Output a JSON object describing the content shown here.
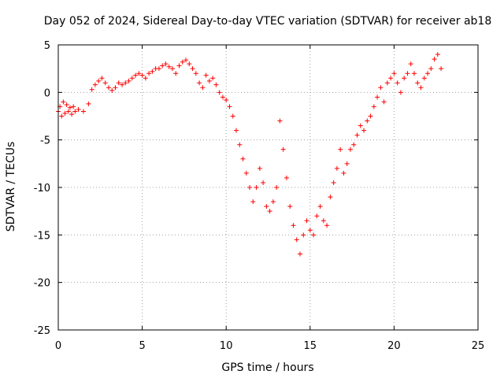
{
  "chart_data": {
    "type": "scatter",
    "title": "Day 052 of 2024, Sidereal Day-to-day VTEC variation (SDTVAR) for receiver ab18",
    "xlabel": "GPS time / hours",
    "ylabel": "SDTVAR / TECUs",
    "xlim": [
      0,
      25
    ],
    "ylim": [
      -25,
      5
    ],
    "xticks": [
      0,
      5,
      10,
      15,
      20,
      25
    ],
    "yticks": [
      -25,
      -20,
      -15,
      -10,
      -5,
      0,
      5
    ],
    "grid": true,
    "marker": "+",
    "color": "#ff0000",
    "series": [
      {
        "name": "SDTVAR",
        "points": [
          [
            0.0,
            -2.0
          ],
          [
            0.1,
            -1.5
          ],
          [
            0.2,
            -2.5
          ],
          [
            0.3,
            -1.0
          ],
          [
            0.4,
            -2.2
          ],
          [
            0.5,
            -1.3
          ],
          [
            0.6,
            -2.0
          ],
          [
            0.7,
            -1.6
          ],
          [
            0.8,
            -2.3
          ],
          [
            0.9,
            -1.5
          ],
          [
            1.0,
            -2.0
          ],
          [
            1.2,
            -1.8
          ],
          [
            1.5,
            -2.0
          ],
          [
            1.8,
            -1.2
          ],
          [
            2.0,
            0.3
          ],
          [
            2.2,
            0.8
          ],
          [
            2.4,
            1.2
          ],
          [
            2.6,
            1.5
          ],
          [
            2.8,
            1.0
          ],
          [
            3.0,
            0.5
          ],
          [
            3.2,
            0.2
          ],
          [
            3.4,
            0.5
          ],
          [
            3.6,
            1.0
          ],
          [
            3.8,
            0.8
          ],
          [
            4.0,
            1.0
          ],
          [
            4.2,
            1.2
          ],
          [
            4.4,
            1.5
          ],
          [
            4.6,
            1.8
          ],
          [
            4.8,
            2.0
          ],
          [
            5.0,
            1.8
          ],
          [
            5.2,
            1.5
          ],
          [
            5.4,
            2.0
          ],
          [
            5.6,
            2.2
          ],
          [
            5.8,
            2.5
          ],
          [
            6.0,
            2.5
          ],
          [
            6.2,
            2.8
          ],
          [
            6.4,
            3.0
          ],
          [
            6.6,
            2.7
          ],
          [
            6.8,
            2.5
          ],
          [
            7.0,
            2.0
          ],
          [
            7.2,
            2.8
          ],
          [
            7.4,
            3.2
          ],
          [
            7.6,
            3.4
          ],
          [
            7.8,
            3.0
          ],
          [
            8.0,
            2.5
          ],
          [
            8.2,
            2.0
          ],
          [
            8.4,
            1.0
          ],
          [
            8.6,
            0.5
          ],
          [
            8.8,
            1.8
          ],
          [
            9.0,
            1.2
          ],
          [
            9.2,
            1.5
          ],
          [
            9.4,
            0.8
          ],
          [
            9.6,
            0.0
          ],
          [
            9.8,
            -0.5
          ],
          [
            10.0,
            -0.8
          ],
          [
            10.2,
            -1.5
          ],
          [
            10.4,
            -2.5
          ],
          [
            10.6,
            -4.0
          ],
          [
            10.8,
            -5.5
          ],
          [
            11.0,
            -7.0
          ],
          [
            11.2,
            -8.5
          ],
          [
            11.4,
            -10.0
          ],
          [
            11.6,
            -11.5
          ],
          [
            11.8,
            -10.0
          ],
          [
            12.0,
            -8.0
          ],
          [
            12.2,
            -9.5
          ],
          [
            12.4,
            -12.0
          ],
          [
            12.6,
            -12.5
          ],
          [
            12.8,
            -11.5
          ],
          [
            13.0,
            -10.0
          ],
          [
            13.2,
            -3.0
          ],
          [
            13.4,
            -6.0
          ],
          [
            13.6,
            -9.0
          ],
          [
            13.8,
            -12.0
          ],
          [
            14.0,
            -14.0
          ],
          [
            14.2,
            -15.5
          ],
          [
            14.4,
            -17.0
          ],
          [
            14.6,
            -15.0
          ],
          [
            14.8,
            -13.5
          ],
          [
            15.0,
            -14.5
          ],
          [
            15.2,
            -15.0
          ],
          [
            15.4,
            -13.0
          ],
          [
            15.6,
            -12.0
          ],
          [
            15.8,
            -13.5
          ],
          [
            16.0,
            -14.0
          ],
          [
            16.2,
            -11.0
          ],
          [
            16.4,
            -9.5
          ],
          [
            16.6,
            -8.0
          ],
          [
            16.8,
            -6.0
          ],
          [
            17.0,
            -8.5
          ],
          [
            17.2,
            -7.5
          ],
          [
            17.4,
            -6.0
          ],
          [
            17.6,
            -5.5
          ],
          [
            17.8,
            -4.5
          ],
          [
            18.0,
            -3.5
          ],
          [
            18.2,
            -4.0
          ],
          [
            18.4,
            -3.0
          ],
          [
            18.6,
            -2.5
          ],
          [
            18.8,
            -1.5
          ],
          [
            19.0,
            -0.5
          ],
          [
            19.2,
            0.5
          ],
          [
            19.4,
            -1.0
          ],
          [
            19.6,
            1.0
          ],
          [
            19.8,
            1.5
          ],
          [
            20.0,
            2.0
          ],
          [
            20.2,
            1.0
          ],
          [
            20.4,
            0.0
          ],
          [
            20.6,
            1.5
          ],
          [
            20.8,
            2.0
          ],
          [
            21.0,
            3.0
          ],
          [
            21.2,
            2.0
          ],
          [
            21.4,
            1.0
          ],
          [
            21.6,
            0.5
          ],
          [
            21.8,
            1.5
          ],
          [
            22.0,
            2.0
          ],
          [
            22.2,
            2.5
          ],
          [
            22.4,
            3.5
          ],
          [
            22.6,
            4.0
          ],
          [
            22.8,
            2.5
          ]
        ]
      }
    ]
  }
}
